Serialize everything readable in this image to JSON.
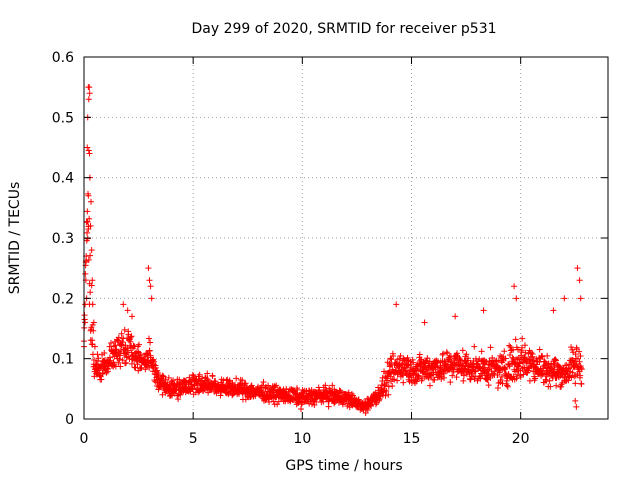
{
  "chart_data": {
    "type": "scatter",
    "title": "Day 299 of 2020, SRMTID for receiver p531",
    "xlabel": "GPS time / hours",
    "ylabel": "SRMTID / TECUs",
    "xlim": [
      0,
      24
    ],
    "ylim": [
      0,
      0.6
    ],
    "x_ticks": [
      0,
      5,
      10,
      15,
      20
    ],
    "x_tick_labels": [
      "0",
      "5",
      "10",
      "15",
      "20"
    ],
    "y_ticks": [
      0,
      0.1,
      0.2,
      0.3,
      0.4,
      0.5,
      0.6
    ],
    "y_tick_labels": [
      "0",
      "0.1",
      "0.2",
      "0.3",
      "0.4",
      "0.5",
      "0.6"
    ],
    "grid": true,
    "marker": "+",
    "colors": {
      "series": "#ff0000",
      "grid": "#a0a0a0",
      "axes": "#000000"
    },
    "series": [
      {
        "name": "p531",
        "data_span_hours": [
          0.0,
          22.8
        ],
        "envelope_hours": [
          0,
          0.1,
          0.2,
          0.3,
          0.4,
          0.5,
          0.7,
          1.0,
          1.5,
          2.0,
          2.5,
          2.9,
          3.0,
          3.1,
          3.5,
          4.0,
          5.0,
          6.0,
          7.0,
          8.0,
          9.0,
          10.0,
          11.0,
          12.0,
          12.8,
          13.5,
          14.0,
          14.5,
          15.0,
          16.0,
          17.0,
          18.0,
          19.0,
          19.5,
          20.0,
          21.0,
          22.0,
          22.5,
          22.8
        ],
        "envelope_median": [
          0.13,
          0.25,
          0.35,
          0.2,
          0.11,
          0.09,
          0.08,
          0.09,
          0.11,
          0.12,
          0.1,
          0.1,
          0.11,
          0.09,
          0.06,
          0.05,
          0.06,
          0.055,
          0.05,
          0.045,
          0.04,
          0.035,
          0.04,
          0.035,
          0.02,
          0.04,
          0.07,
          0.09,
          0.08,
          0.085,
          0.09,
          0.085,
          0.08,
          0.09,
          0.1,
          0.085,
          0.075,
          0.09,
          0.09
        ],
        "envelope_spread": [
          0.03,
          0.1,
          0.17,
          0.15,
          0.08,
          0.03,
          0.03,
          0.03,
          0.04,
          0.05,
          0.03,
          0.03,
          0.05,
          0.03,
          0.025,
          0.025,
          0.025,
          0.02,
          0.02,
          0.02,
          0.02,
          0.02,
          0.02,
          0.02,
          0.01,
          0.02,
          0.04,
          0.04,
          0.035,
          0.035,
          0.04,
          0.035,
          0.04,
          0.05,
          0.05,
          0.04,
          0.03,
          0.05,
          0.05
        ],
        "points": [
          [
            0.0,
            0.12
          ],
          [
            0.05,
            0.19
          ],
          [
            0.08,
            0.26
          ],
          [
            0.1,
            0.27
          ],
          [
            0.12,
            0.2
          ],
          [
            0.15,
            0.45
          ],
          [
            0.17,
            0.5
          ],
          [
            0.2,
            0.55
          ],
          [
            0.22,
            0.53
          ],
          [
            0.25,
            0.44
          ],
          [
            0.27,
            0.4
          ],
          [
            0.3,
            0.32
          ],
          [
            0.32,
            0.36
          ],
          [
            0.35,
            0.28
          ],
          [
            0.38,
            0.23
          ],
          [
            0.4,
            0.19
          ],
          [
            0.45,
            0.16
          ],
          [
            0.5,
            0.12
          ],
          [
            0.2,
            0.37
          ],
          [
            0.22,
            0.445
          ],
          [
            0.24,
            0.55
          ],
          [
            0.26,
            0.54
          ],
          [
            2.95,
            0.25
          ],
          [
            3.0,
            0.23
          ],
          [
            3.05,
            0.22
          ],
          [
            3.1,
            0.2
          ],
          [
            1.8,
            0.19
          ],
          [
            2.0,
            0.18
          ],
          [
            2.2,
            0.17
          ],
          [
            14.3,
            0.19
          ],
          [
            15.6,
            0.16
          ],
          [
            17.0,
            0.17
          ],
          [
            18.3,
            0.18
          ],
          [
            19.7,
            0.22
          ],
          [
            19.8,
            0.2
          ],
          [
            21.5,
            0.18
          ],
          [
            22.0,
            0.2
          ],
          [
            22.6,
            0.25
          ],
          [
            22.7,
            0.23
          ],
          [
            22.75,
            0.2
          ],
          [
            22.5,
            0.03
          ],
          [
            22.55,
            0.02
          ],
          [
            12.9,
            0.01
          ],
          [
            13.0,
            0.015
          ]
        ]
      }
    ]
  }
}
